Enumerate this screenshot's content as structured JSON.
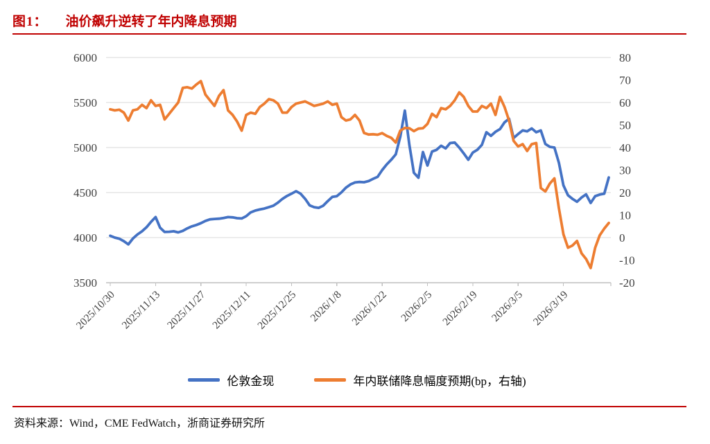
{
  "figure": {
    "label": "图1：",
    "title": "油价飙升逆转了年内降息预期"
  },
  "source_line": "资料来源：Wind，CME FedWatch，浙商证券研究所",
  "colors": {
    "accent_red": "#C00000",
    "grid": "#D9D9D9",
    "axis_line": "#BFBFBF",
    "axis_text": "#3F3F3F",
    "series_blue": "#4472C4",
    "series_orange": "#ED7D31"
  },
  "chart_data": {
    "type": "line",
    "title": "油价飙升逆转了年内降息预期",
    "grid": true,
    "legend_position": "bottom",
    "x_tick_labels": [
      "2025/10/30",
      "2025/11/13",
      "2025/11/27",
      "2025/12/11",
      "2025/12/25",
      "2026/1/8",
      "2026/1/22",
      "2026/2/5",
      "2026/2/19",
      "2026/3/5",
      "2026/3/19"
    ],
    "x_points_per_tick": 10,
    "left_axis": {
      "label": "伦敦金现",
      "min": 3500,
      "max": 6000,
      "ticks": [
        6000,
        5500,
        5000,
        4500,
        4000,
        3500
      ]
    },
    "right_axis": {
      "label": "年内联储降息幅度预期(bp)",
      "min": -20,
      "max": 80,
      "ticks": [
        80,
        70,
        60,
        50,
        40,
        30,
        20,
        10,
        0,
        -10,
        -20
      ]
    },
    "series": [
      {
        "name": "伦敦金现",
        "axis": "left",
        "color": "#4472C4",
        "values": [
          4020,
          4000,
          3988,
          3960,
          3925,
          3990,
          4035,
          4070,
          4115,
          4175,
          4228,
          4110,
          4062,
          4065,
          4070,
          4058,
          4075,
          4102,
          4125,
          4140,
          4160,
          4185,
          4202,
          4207,
          4210,
          4218,
          4228,
          4225,
          4215,
          4212,
          4238,
          4280,
          4300,
          4312,
          4322,
          4338,
          4355,
          4388,
          4430,
          4462,
          4488,
          4515,
          4488,
          4430,
          4358,
          4338,
          4330,
          4355,
          4405,
          4452,
          4460,
          4502,
          4555,
          4590,
          4612,
          4618,
          4615,
          4628,
          4652,
          4675,
          4750,
          4812,
          4865,
          4925,
          5120,
          5410,
          5030,
          4720,
          4665,
          4950,
          4800,
          4955,
          4975,
          5020,
          4990,
          5050,
          5055,
          5000,
          4935,
          4865,
          4945,
          4975,
          5030,
          5170,
          5130,
          5175,
          5205,
          5280,
          5320,
          5105,
          5150,
          5190,
          5180,
          5212,
          5170,
          5190,
          5040,
          5008,
          5000,
          4830,
          4580,
          4470,
          4430,
          4398,
          4445,
          4480,
          4385,
          4460,
          4478,
          4488,
          4668
        ]
      },
      {
        "name": "年内联储降息幅度预期(bp，右轴)",
        "axis": "right",
        "color": "#ED7D31",
        "values": [
          57,
          56.5,
          56.8,
          55.5,
          52,
          56.5,
          57,
          59,
          57.5,
          61,
          58.5,
          59,
          52.5,
          55,
          57.5,
          60,
          66.5,
          66.8,
          66.2,
          68,
          69.5,
          63.5,
          61,
          58.5,
          63,
          65.5,
          56.5,
          54.5,
          51.5,
          47.5,
          54.5,
          55.5,
          55,
          58,
          59.5,
          61.5,
          61,
          59.5,
          55.5,
          55.5,
          58,
          59.5,
          60,
          60.5,
          59.5,
          58.5,
          59,
          59.5,
          60.5,
          59,
          59.5,
          53.5,
          52,
          52.5,
          54.5,
          52,
          46.5,
          45.8,
          45.9,
          45.7,
          46.4,
          45.2,
          44.3,
          42.2,
          47.5,
          48.7,
          48.6,
          47.3,
          48.4,
          48.6,
          50.5,
          55,
          53.5,
          57.5,
          57,
          58.5,
          61,
          64.5,
          62.5,
          58.5,
          56,
          56,
          58.5,
          57.5,
          59.5,
          54.5,
          62.5,
          58,
          52,
          43,
          40.5,
          41.5,
          38.5,
          41.5,
          42,
          22,
          20.5,
          24,
          26.3,
          13,
          1.5,
          -4.5,
          -3.5,
          -1.5,
          -7,
          -9.5,
          -13.5,
          -4.5,
          1,
          4,
          6.5
        ]
      }
    ]
  }
}
